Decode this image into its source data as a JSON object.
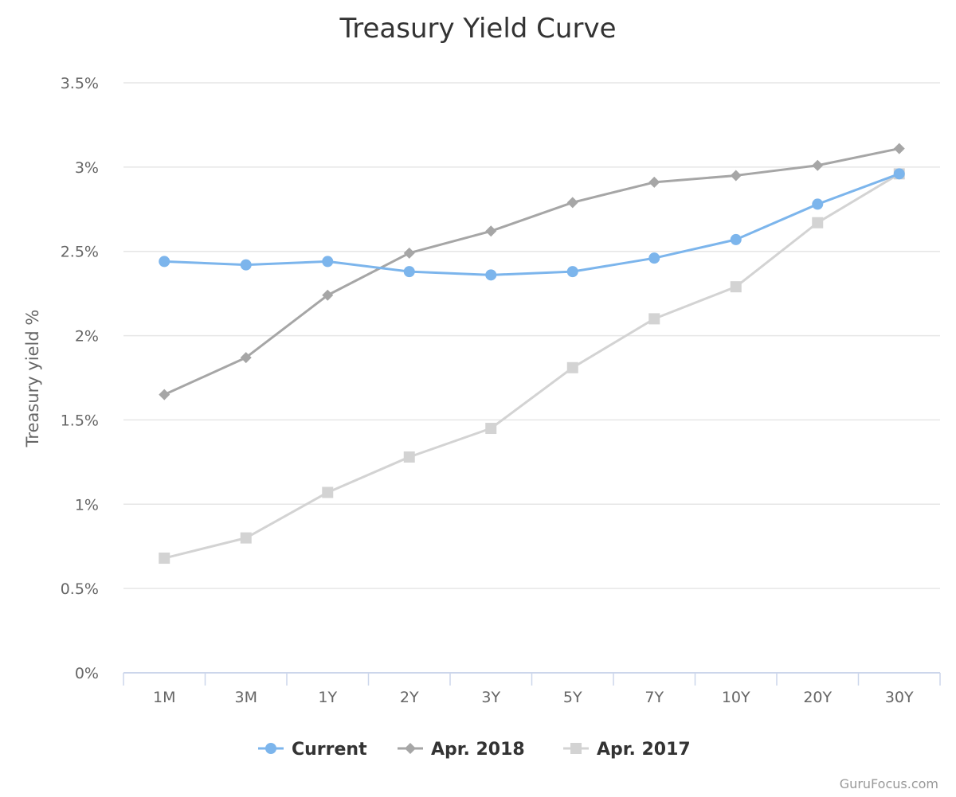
{
  "chart_data": {
    "type": "line",
    "title": "Treasury Yield Curve",
    "ylabel": "Treasury yield %",
    "xlabel": "",
    "categories": [
      "1M",
      "3M",
      "1Y",
      "2Y",
      "3Y",
      "5Y",
      "7Y",
      "10Y",
      "20Y",
      "30Y"
    ],
    "ylim": [
      0,
      3.5
    ],
    "yticks": [
      0,
      0.5,
      1,
      1.5,
      2,
      2.5,
      3,
      3.5
    ],
    "ytick_labels": [
      "0%",
      "0.5%",
      "1%",
      "1.5%",
      "2%",
      "2.5%",
      "3%",
      "3.5%"
    ],
    "grid": true,
    "legend_position": "bottom-center",
    "series": [
      {
        "name": "Current",
        "color": "#7cb5ec",
        "marker": "circle",
        "values": [
          2.44,
          2.42,
          2.44,
          2.38,
          2.36,
          2.38,
          2.46,
          2.57,
          2.78,
          2.96
        ]
      },
      {
        "name": "Apr. 2018",
        "color": "#a6a6a6",
        "marker": "diamond",
        "values": [
          1.65,
          1.87,
          2.24,
          2.49,
          2.62,
          2.79,
          2.91,
          2.95,
          3.01,
          3.11
        ]
      },
      {
        "name": "Apr. 2017",
        "color": "#d3d3d3",
        "marker": "square",
        "values": [
          0.68,
          0.8,
          1.07,
          1.28,
          1.45,
          1.81,
          2.1,
          2.29,
          2.67,
          2.96
        ]
      }
    ]
  },
  "credits": "GuruFocus.com"
}
